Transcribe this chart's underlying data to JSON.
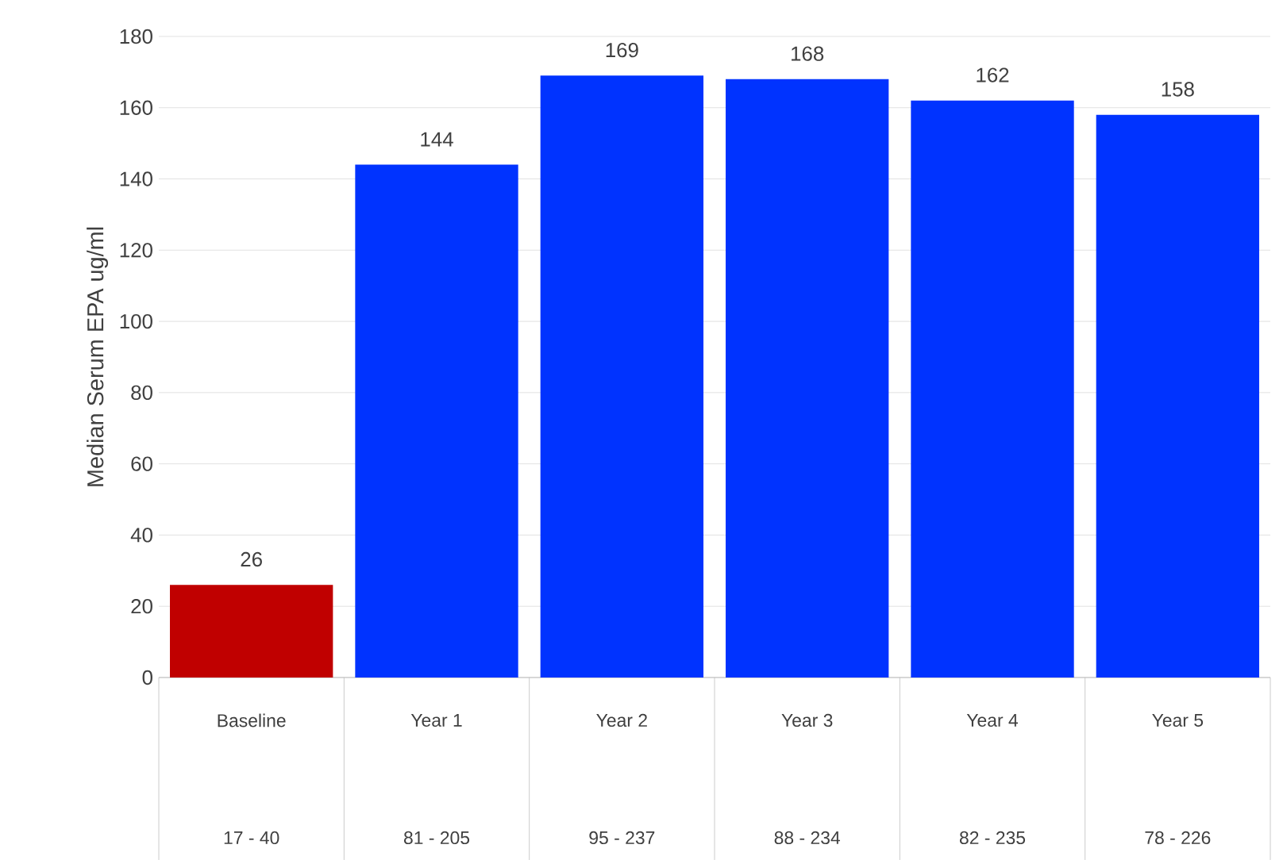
{
  "chart_data": {
    "type": "bar",
    "ylabel": "Median Serum EPA  ug/ml",
    "categories": [
      "Baseline",
      "Year 1",
      "Year 2",
      "Year 3",
      "Year 4",
      "Year 5"
    ],
    "values": [
      26,
      144,
      169,
      168,
      162,
      158
    ],
    "colors": [
      "#c00000",
      "#0033ff",
      "#0033ff",
      "#0033ff",
      "#0033ff",
      "#0033ff"
    ],
    "ylim": [
      0,
      180
    ],
    "yticks": [
      0,
      20,
      40,
      60,
      80,
      100,
      120,
      140,
      160,
      180
    ],
    "grid": "y",
    "data_labels": true,
    "annotations": [
      "17 - 40",
      "81 - 205",
      "95 - 237",
      "88 - 234",
      "82 - 235",
      "78 - 226"
    ]
  }
}
